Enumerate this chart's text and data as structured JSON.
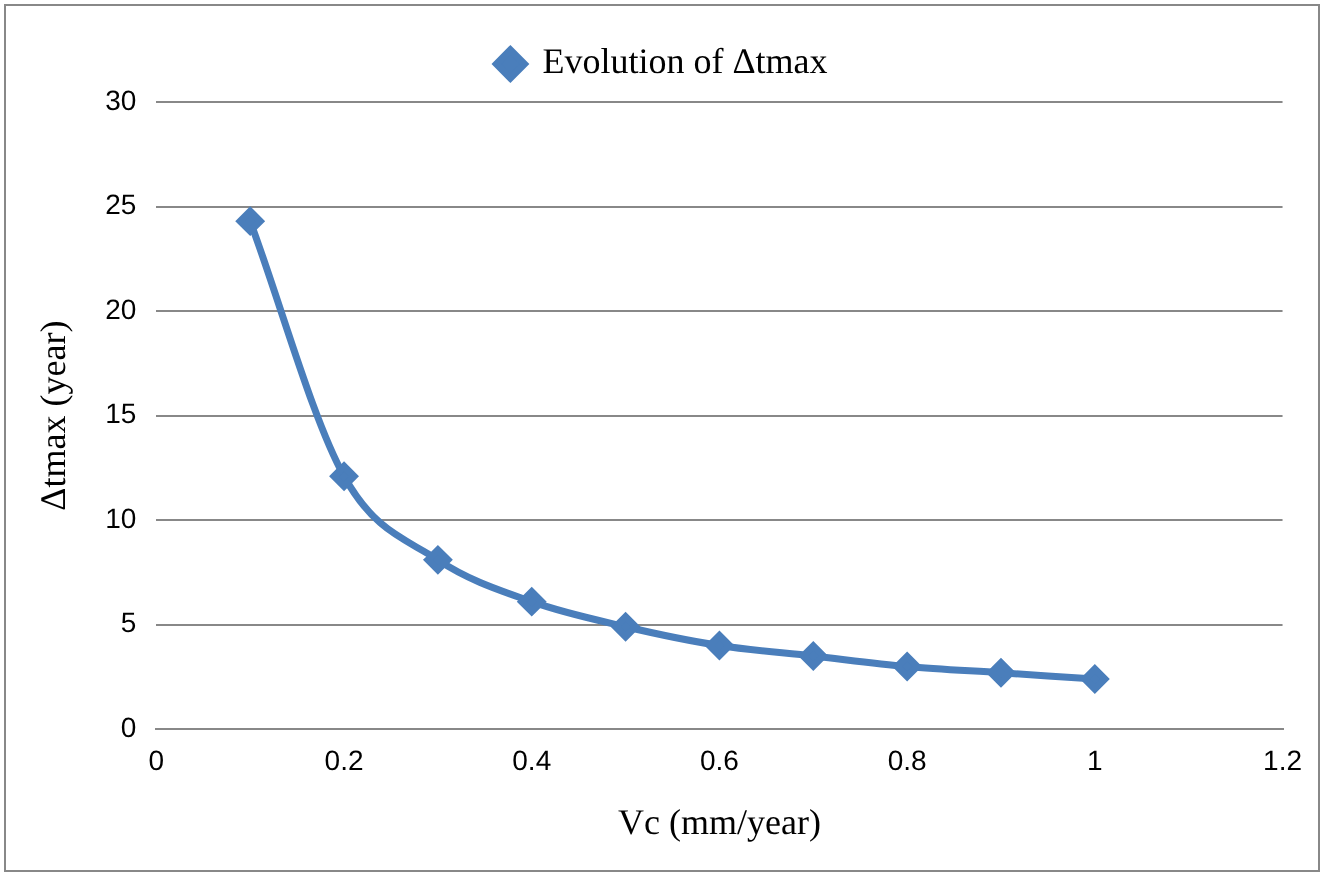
{
  "chart_data": {
    "type": "line",
    "xlabel": "Vc (mm/year)",
    "ylabel": "Δtmax (year)",
    "x": [
      0.1,
      0.2,
      0.3,
      0.4,
      0.5,
      0.6,
      0.7,
      0.8,
      0.9,
      1.0
    ],
    "series": [
      {
        "name": "Evolution of Δtmax",
        "color": "#4a7ebb",
        "values": [
          24.3,
          12.1,
          8.1,
          6.1,
          4.9,
          4.0,
          3.5,
          3.0,
          2.7,
          2.4
        ]
      }
    ],
    "xlim": [
      0,
      1.2
    ],
    "xticks": [
      0,
      0.2,
      0.4,
      0.6,
      0.8,
      1,
      1.2
    ],
    "ylim": [
      0,
      30
    ],
    "yticks": [
      0,
      5,
      10,
      15,
      20,
      25,
      30
    ],
    "grid": "y",
    "legend": "top",
    "marker": "diamond",
    "line_style": "solid"
  }
}
